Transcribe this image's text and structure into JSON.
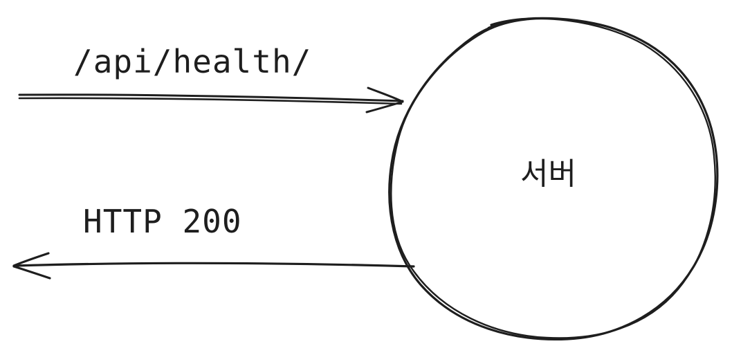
{
  "diagram": {
    "request": {
      "label": "/api/health/"
    },
    "response": {
      "label": "HTTP 200"
    },
    "server": {
      "label": "서버"
    },
    "stroke_color": "#1e1e1e"
  }
}
